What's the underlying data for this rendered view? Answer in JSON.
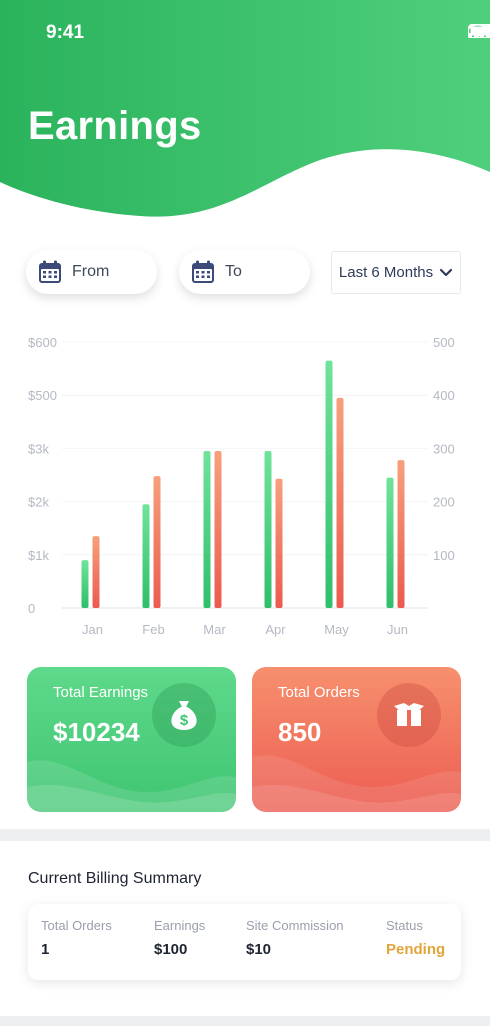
{
  "status_bar": {
    "time": "9:41"
  },
  "header": {
    "title": "Earnings",
    "color_start": "#27b25a",
    "color_end": "#5fd68a"
  },
  "filters": {
    "from_label": "From",
    "to_label": "To",
    "range_label": "Last 6 Months"
  },
  "chart_data": {
    "type": "bar",
    "categories": [
      "Jan",
      "Feb",
      "Mar",
      "Apr",
      "May",
      "Jun"
    ],
    "y_left_ticks": [
      "0",
      "$1k",
      "$2k",
      "$3k",
      "$500",
      "$600"
    ],
    "y_right_ticks": [
      "100",
      "200",
      "300",
      "400",
      "500"
    ],
    "y_left_values_index": [
      0,
      1,
      2,
      3,
      4,
      5
    ],
    "series": [
      {
        "name": "",
        "axis": "left",
        "color_top": "#6fe39a",
        "color_bottom": "#2fbf6a",
        "values": [
          0.9,
          1.95,
          2.95,
          2.95,
          4.65,
          2.45
        ]
      },
      {
        "name": "",
        "axis": "right",
        "color_top": "#f7a07c",
        "color_bottom": "#eb5a4f",
        "values": [
          135,
          248,
          295,
          243,
          395,
          278
        ]
      }
    ],
    "ylim_left": [
      0,
      5
    ],
    "ylim_right": [
      0,
      500
    ]
  },
  "cards": {
    "earnings": {
      "label": "Total Earnings",
      "value": "$10234",
      "icon": "money-bag-icon"
    },
    "orders": {
      "label": "Total Orders",
      "value": "850",
      "icon": "box-icon"
    }
  },
  "billing": {
    "title": "Current Billing Summary",
    "columns": [
      {
        "header": "Total Orders",
        "value": "1"
      },
      {
        "header": "Earnings",
        "value": "$100"
      },
      {
        "header": "Site Commission",
        "value": "$10"
      },
      {
        "header": "Status",
        "value": "Pending"
      }
    ],
    "status_color": "#e2a53a"
  }
}
